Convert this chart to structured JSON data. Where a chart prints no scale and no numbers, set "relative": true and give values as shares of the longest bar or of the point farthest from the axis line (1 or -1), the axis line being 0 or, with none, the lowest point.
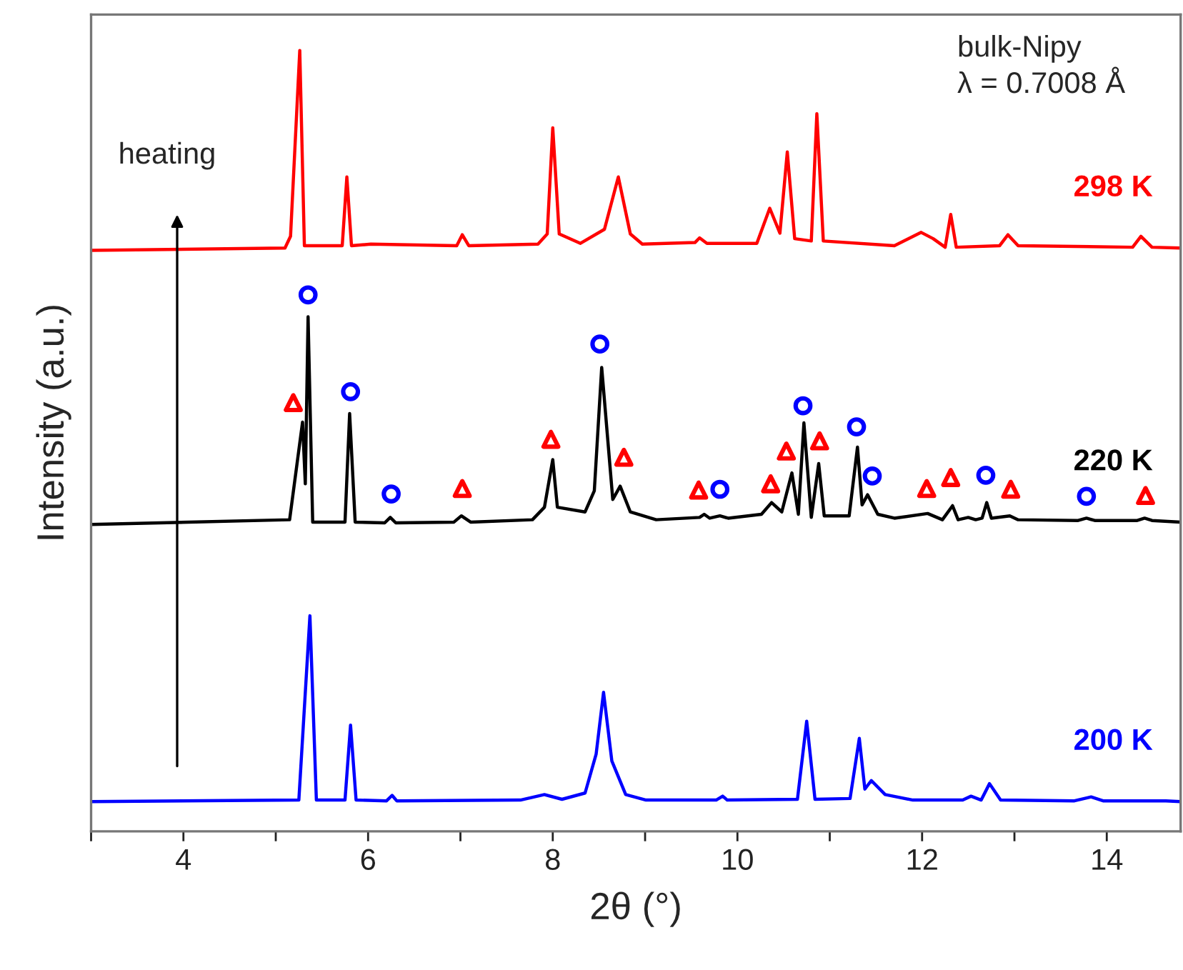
{
  "chart_data": {
    "type": "line",
    "relative": true,
    "xlabel": "2θ (°)",
    "ylabel": "Intensity (a.u.)",
    "xlim": [
      3,
      14.8
    ],
    "xticks": [
      {
        "value": 3,
        "label": null
      },
      4,
      {
        "value": 5,
        "label": null
      },
      6,
      {
        "value": 7,
        "label": null
      },
      8,
      {
        "value": 9,
        "label": null
      },
      10,
      {
        "value": 11,
        "label": null
      },
      12,
      {
        "value": 13,
        "label": null
      },
      14
    ],
    "grid": false,
    "annotations": [
      "heating",
      "bulk-Nipy\nλ = 0.7008 Å"
    ],
    "series": [
      {
        "name": "298 K",
        "color": "#ff0000",
        "marker": "none",
        "x": [
          3.0,
          5.1,
          5.16,
          5.26,
          5.31,
          5.72,
          5.77,
          5.82,
          6.03,
          6.96,
          7.02,
          7.09,
          7.84,
          7.94,
          8.0,
          8.07,
          8.3,
          8.56,
          8.71,
          8.84,
          8.97,
          9.54,
          9.59,
          9.67,
          10.21,
          10.35,
          10.46,
          10.54,
          10.62,
          10.8,
          10.86,
          10.93,
          11.7,
          11.99,
          12.12,
          12.25,
          12.31,
          12.37,
          12.84,
          12.93,
          13.04,
          14.28,
          14.37,
          14.49,
          14.8
        ],
        "values": [
          0.744,
          0.747,
          0.762,
          1.0,
          0.75,
          0.75,
          0.838,
          0.75,
          0.752,
          0.75,
          0.764,
          0.75,
          0.752,
          0.765,
          0.901,
          0.765,
          0.753,
          0.771,
          0.838,
          0.765,
          0.752,
          0.754,
          0.76,
          0.753,
          0.753,
          0.798,
          0.766,
          0.87,
          0.759,
          0.756,
          0.919,
          0.756,
          0.75,
          0.767,
          0.759,
          0.748,
          0.79,
          0.748,
          0.75,
          0.764,
          0.75,
          0.748,
          0.762,
          0.748,
          0.747
        ]
      },
      {
        "name": "220 K",
        "color": "#000000",
        "marker": "none",
        "x": [
          3.0,
          5.15,
          5.29,
          5.32,
          5.35,
          5.4,
          5.75,
          5.8,
          5.86,
          6.18,
          6.24,
          6.3,
          6.93,
          7.01,
          7.11,
          7.78,
          7.91,
          8.0,
          8.05,
          8.35,
          8.45,
          8.53,
          8.65,
          8.73,
          8.84,
          9.12,
          9.59,
          9.64,
          9.7,
          9.81,
          9.9,
          10.26,
          10.37,
          10.48,
          10.59,
          10.66,
          10.72,
          10.8,
          10.88,
          10.94,
          11.21,
          11.3,
          11.35,
          11.41,
          11.52,
          11.7,
          12.06,
          12.22,
          12.33,
          12.39,
          12.5,
          12.58,
          12.65,
          12.7,
          12.75,
          12.95,
          13.04,
          13.69,
          13.78,
          13.87,
          14.33,
          14.41,
          14.49,
          14.8
        ],
        "values": [
          0.393,
          0.399,
          0.524,
          0.445,
          0.659,
          0.396,
          0.396,
          0.535,
          0.396,
          0.395,
          0.402,
          0.395,
          0.396,
          0.404,
          0.396,
          0.399,
          0.415,
          0.476,
          0.415,
          0.409,
          0.436,
          0.594,
          0.425,
          0.442,
          0.409,
          0.399,
          0.402,
          0.406,
          0.401,
          0.404,
          0.401,
          0.406,
          0.421,
          0.409,
          0.459,
          0.406,
          0.523,
          0.402,
          0.471,
          0.404,
          0.404,
          0.492,
          0.418,
          0.431,
          0.406,
          0.401,
          0.407,
          0.399,
          0.417,
          0.399,
          0.402,
          0.399,
          0.401,
          0.421,
          0.401,
          0.404,
          0.399,
          0.398,
          0.401,
          0.398,
          0.398,
          0.401,
          0.398,
          0.396
        ]
      },
      {
        "name": "200 K",
        "color": "#0000ff",
        "marker": "none",
        "x": [
          3.0,
          5.25,
          5.37,
          5.44,
          5.75,
          5.81,
          5.87,
          6.2,
          6.26,
          6.31,
          7.65,
          7.91,
          8.1,
          8.35,
          8.47,
          8.55,
          8.64,
          8.79,
          9.01,
          9.77,
          9.84,
          9.89,
          10.65,
          10.75,
          10.84,
          11.22,
          11.32,
          11.38,
          11.45,
          11.6,
          11.9,
          12.44,
          12.53,
          12.64,
          12.73,
          12.85,
          13.65,
          13.83,
          13.96,
          14.64,
          14.8
        ],
        "values": [
          0.038,
          0.04,
          0.276,
          0.04,
          0.04,
          0.136,
          0.04,
          0.039,
          0.046,
          0.039,
          0.04,
          0.047,
          0.041,
          0.049,
          0.099,
          0.178,
          0.09,
          0.047,
          0.04,
          0.04,
          0.045,
          0.04,
          0.041,
          0.141,
          0.041,
          0.042,
          0.119,
          0.054,
          0.065,
          0.047,
          0.04,
          0.04,
          0.045,
          0.04,
          0.061,
          0.04,
          0.039,
          0.044,
          0.039,
          0.039,
          0.038
        ]
      },
      {
        "type": "scatter",
        "marker": "circle",
        "color": "#0000ff",
        "x": [
          5.35,
          5.81,
          6.25,
          8.51,
          9.81,
          10.71,
          11.29,
          11.46,
          12.69,
          13.78
        ],
        "values": [
          0.687,
          0.563,
          0.432,
          0.624,
          0.438,
          0.545,
          0.518,
          0.455,
          0.456,
          0.429
        ]
      },
      {
        "type": "scatter",
        "marker": "triangle",
        "color": "#ff0000",
        "x": [
          5.19,
          7.02,
          7.98,
          8.77,
          9.58,
          10.36,
          10.53,
          10.89,
          12.05,
          12.31,
          12.96,
          14.42
        ],
        "values": [
          0.549,
          0.439,
          0.502,
          0.479,
          0.437,
          0.445,
          0.487,
          0.5,
          0.439,
          0.453,
          0.438,
          0.43
        ]
      }
    ]
  }
}
